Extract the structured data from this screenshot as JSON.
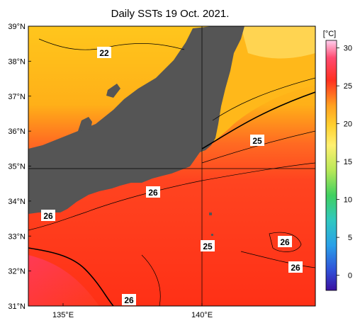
{
  "title": "Daily SSTs 19 Oct. 2021.",
  "lat_ticks": [
    "39°N",
    "38°N",
    "37°N",
    "36°N",
    "35°N",
    "34°N",
    "33°N",
    "32°N",
    "31°N"
  ],
  "lon_ticks": [
    "135°E",
    "140°E"
  ],
  "colorbar": {
    "unit": "[°C]",
    "ticks": [
      "30",
      "25",
      "20",
      "15",
      "10",
      "5",
      "0"
    ],
    "range": [
      -2,
      31
    ]
  },
  "contour_labels": [
    "22",
    "25",
    "26",
    "26",
    "25",
    "26",
    "26",
    "26"
  ],
  "colors": {
    "land": "#555555",
    "warm_sea": "#ff3b1d",
    "cool_sea": "#ffc21a"
  }
}
